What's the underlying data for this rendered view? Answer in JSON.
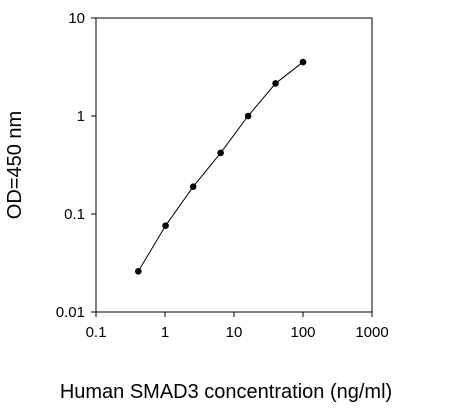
{
  "chart_data": {
    "type": "line",
    "xlabel": "Human SMAD3 concentration (ng/ml)",
    "ylabel": "OD=450 nm",
    "x_scale": "log",
    "y_scale": "log",
    "xlim": [
      0.1,
      1000
    ],
    "ylim": [
      0.01,
      10
    ],
    "x_ticks": [
      0.1,
      1,
      10,
      100,
      1000
    ],
    "x_tick_labels": [
      "0.1",
      "1",
      "10",
      "100",
      "1000"
    ],
    "y_ticks": [
      0.01,
      0.1,
      1,
      10
    ],
    "y_tick_labels": [
      "0.01",
      "0.1",
      "1",
      "10"
    ],
    "grid": false,
    "series": [
      {
        "x": [
          0.41,
          1.02,
          2.56,
          6.4,
          16,
          40,
          100
        ],
        "y": [
          0.026,
          0.076,
          0.19,
          0.42,
          1.0,
          2.15,
          3.55
        ]
      }
    ],
    "colors": {
      "line": "#000000",
      "marker": "#000000",
      "axis": "#000000"
    }
  }
}
